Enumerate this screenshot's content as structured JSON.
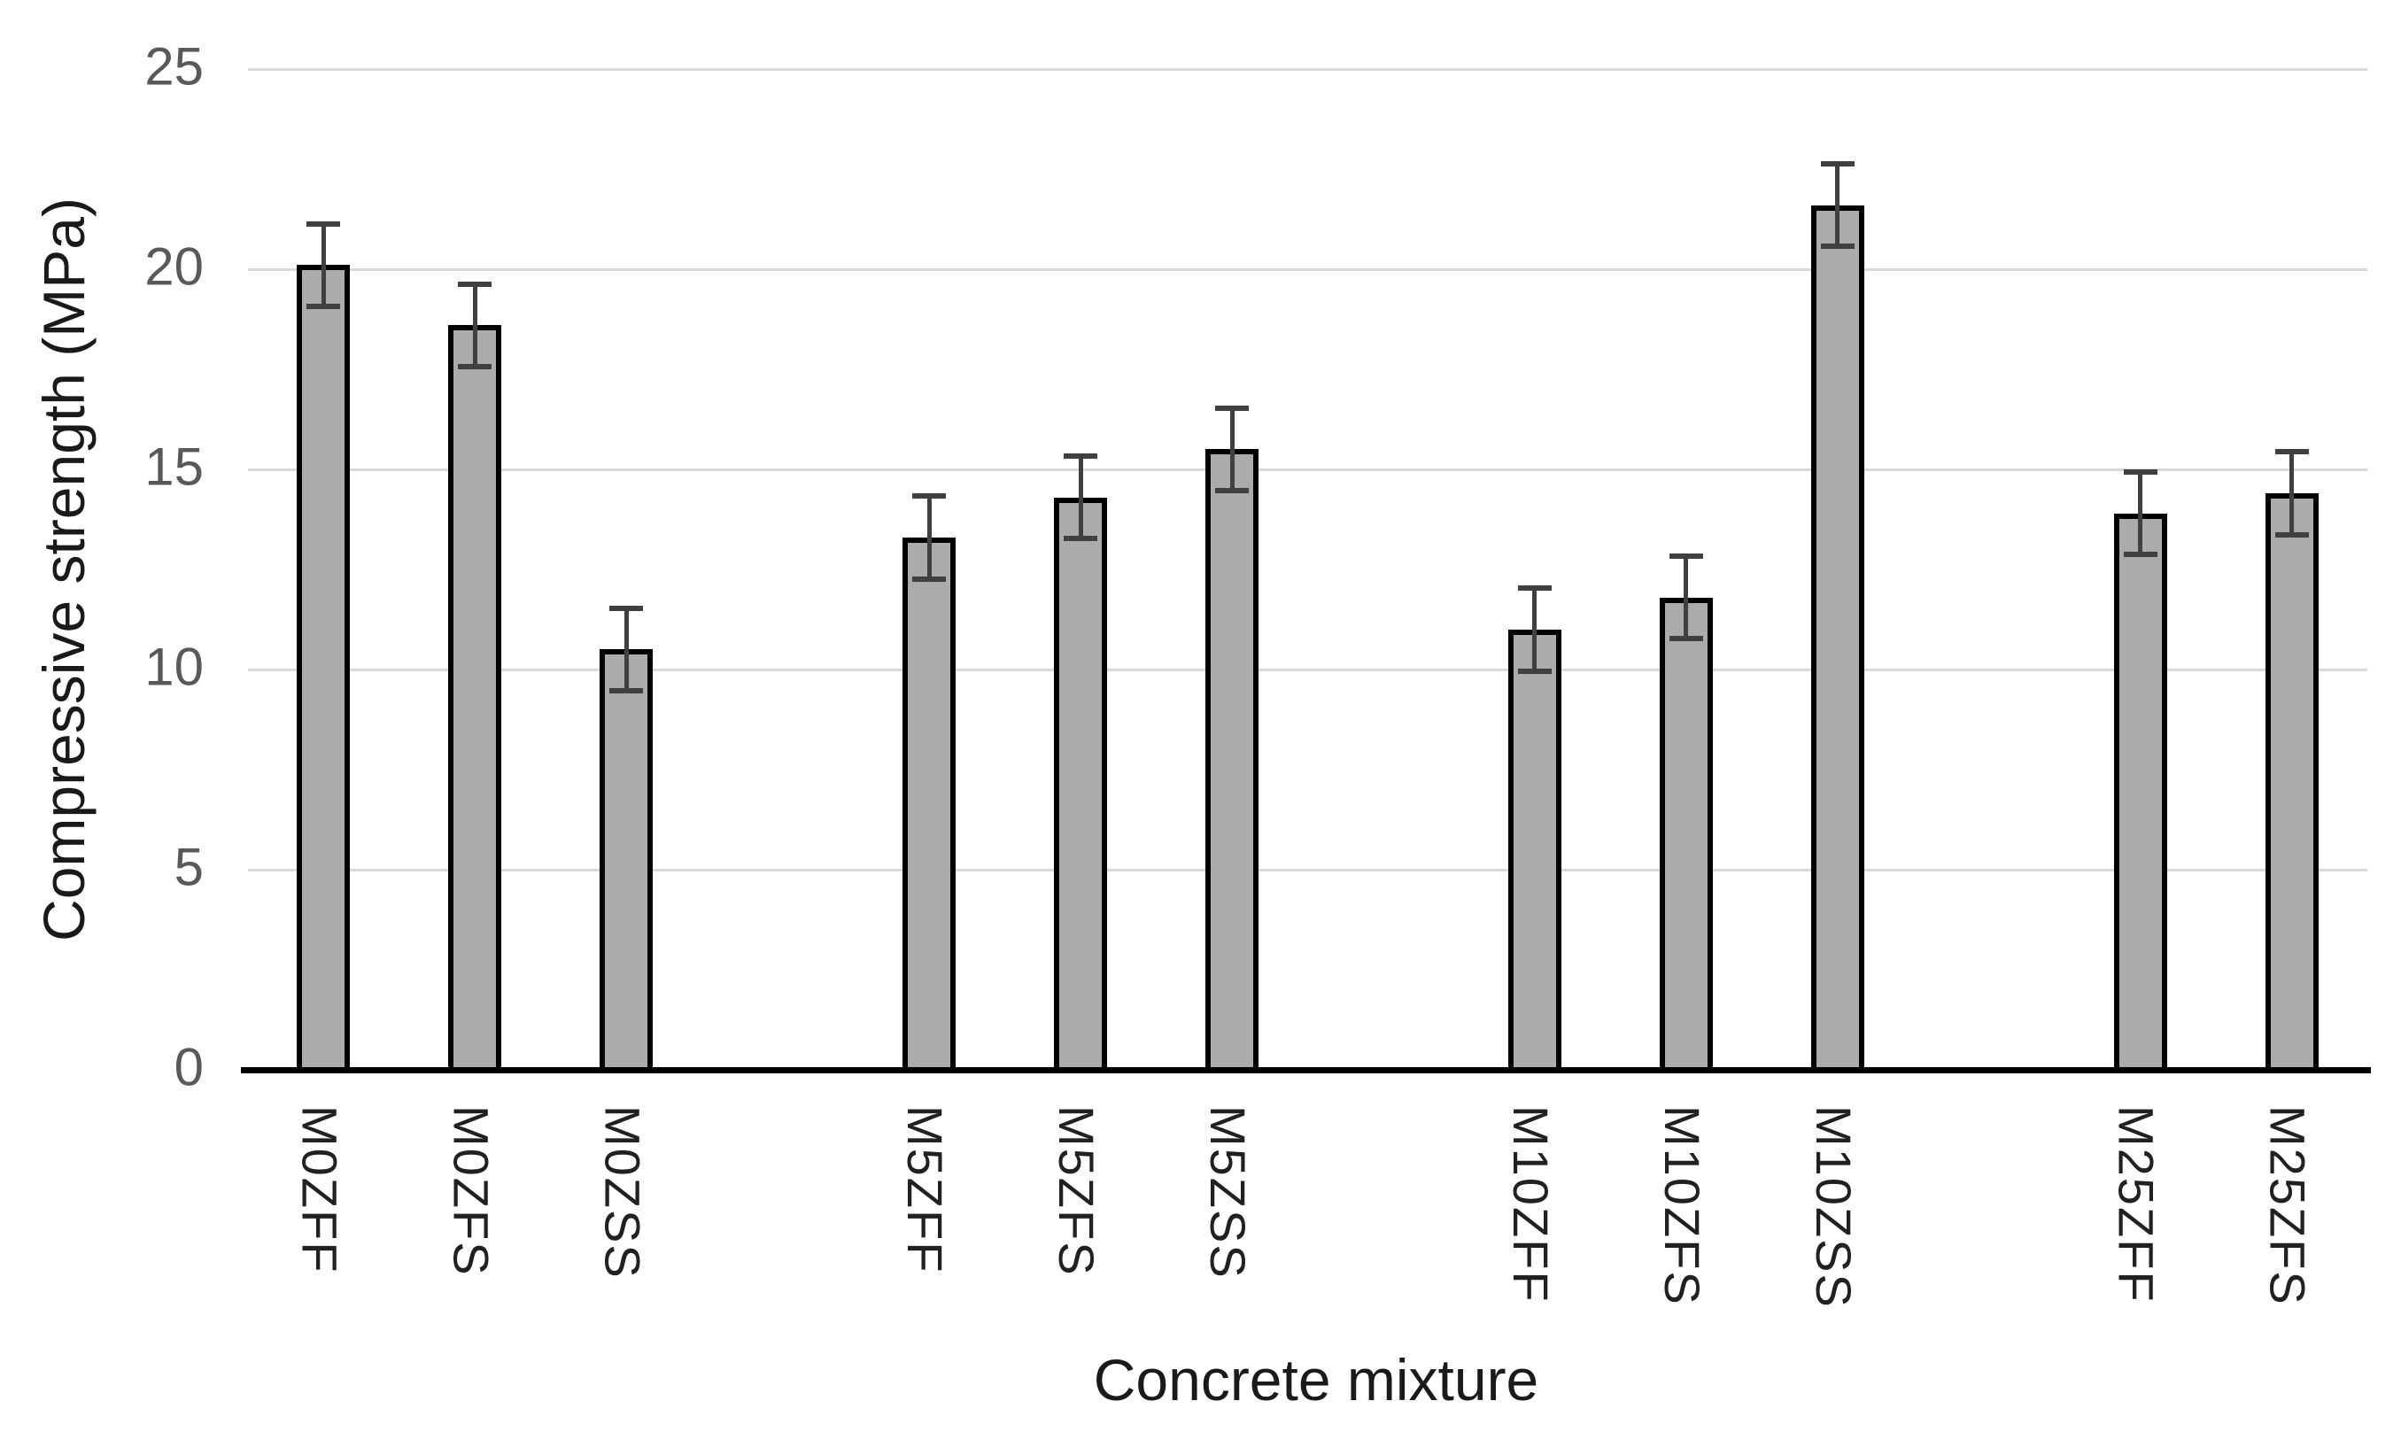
{
  "chart_data": {
    "type": "bar",
    "title": "",
    "xlabel": "Concrete mixture",
    "ylabel": "Compressive strength (MPa)",
    "categories": [
      "M0ZFF",
      "M0ZFS",
      "M0ZSS",
      "M5ZFF",
      "M5ZFS",
      "M5ZSS",
      "M10ZFF",
      "M10ZFS",
      "M10ZSS",
      "M25ZFF",
      "M25ZFS"
    ],
    "values": [
      20.1,
      18.6,
      10.5,
      13.3,
      14.3,
      15.5,
      11.0,
      11.8,
      21.6,
      13.9,
      14.4
    ],
    "error_bars": [
      1.1,
      1.1,
      1.1,
      1.1,
      1.1,
      1.1,
      1.1,
      1.1,
      1.1,
      1.1,
      1.1
    ],
    "group_slots": [
      0,
      1,
      2,
      4,
      5,
      6,
      8,
      9,
      10,
      12,
      13
    ],
    "total_slots": 14,
    "groups": [
      "M0",
      "M5",
      "M10",
      "M25"
    ],
    "ylim": [
      0,
      25
    ],
    "yticks": [
      0,
      5,
      10,
      15,
      20,
      25
    ],
    "grid": "horizontal-only",
    "legend_position": "none",
    "colors": {
      "bar_fill": "#ababab",
      "bar_border": "#000000",
      "error_bar": "#404040",
      "gridline": "#d9d9d9",
      "axis_line": "#000000",
      "tick_label": "#595959",
      "category_label": "#212121",
      "axis_title": "#1a1a1a",
      "background": "#ffffff"
    }
  }
}
